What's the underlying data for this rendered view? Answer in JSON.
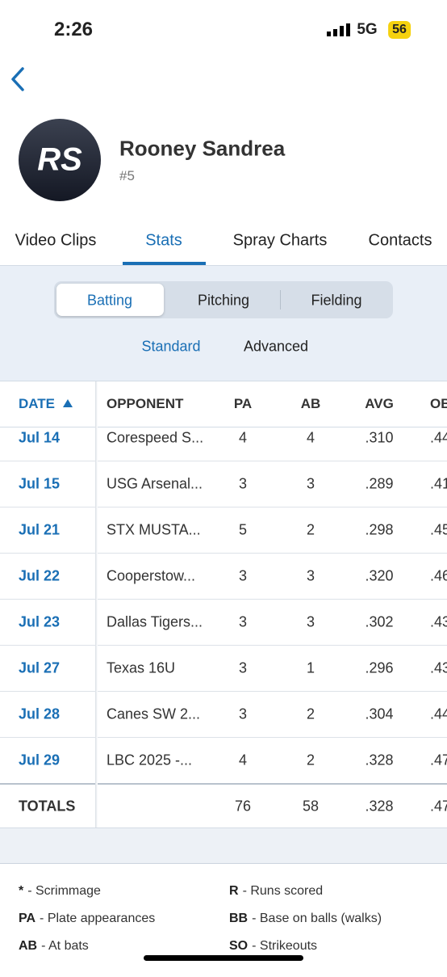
{
  "status_bar": {
    "time": "2:26",
    "network": "5G",
    "battery": "56"
  },
  "profile": {
    "initials": "RS",
    "name": "Rooney Sandrea",
    "number": "#5"
  },
  "tabs": [
    "Video Clips",
    "Stats",
    "Spray Charts",
    "Contacts"
  ],
  "segments": [
    "Batting",
    "Pitching",
    "Fielding"
  ],
  "views": [
    "Standard",
    "Advanced"
  ],
  "table": {
    "headers": [
      "DATE",
      "OPPONENT",
      "PA",
      "AB",
      "AVG",
      "OBP"
    ],
    "rows": [
      [
        "Jul 14",
        "Corespeed S...",
        "4",
        "4",
        ".310",
        ".44"
      ],
      [
        "Jul 15",
        "USG Arsenal...",
        "3",
        "3",
        ".289",
        ".41"
      ],
      [
        "Jul 21",
        "STX MUSTA...",
        "5",
        "2",
        ".298",
        ".45"
      ],
      [
        "Jul 22",
        "Cooperstow...",
        "3",
        "3",
        ".320",
        ".46"
      ],
      [
        "Jul 23",
        "Dallas Tigers...",
        "3",
        "3",
        ".302",
        ".43"
      ],
      [
        "Jul 27",
        "Texas 16U",
        "3",
        "1",
        ".296",
        ".43"
      ],
      [
        "Jul 28",
        "Canes SW 2...",
        "3",
        "2",
        ".304",
        ".44"
      ],
      [
        "Jul 29",
        "LBC 2025 -...",
        "4",
        "2",
        ".328",
        ".47"
      ]
    ],
    "totals": {
      "label": "TOTALS",
      "pa": "76",
      "ab": "58",
      "avg": ".328",
      "obp": ".47"
    }
  },
  "legend": [
    [
      "*",
      "- Scrimmage"
    ],
    [
      "R",
      "- Runs scored"
    ],
    [
      "PA",
      "- Plate appearances"
    ],
    [
      "BB",
      "- Base on balls (walks)"
    ],
    [
      "AB",
      "- At bats"
    ],
    [
      "SO",
      "- Strikeouts"
    ]
  ]
}
